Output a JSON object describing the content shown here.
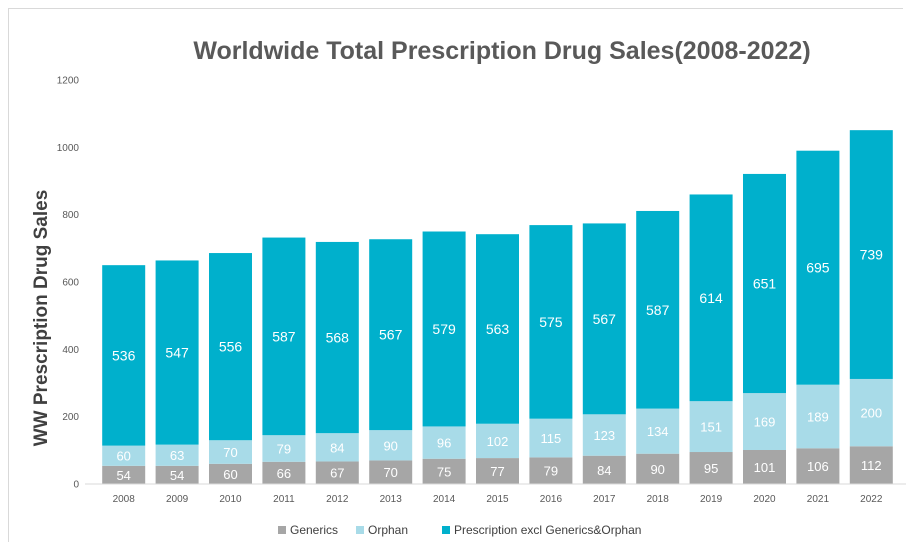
{
  "chart_data": {
    "type": "bar",
    "stacked": true,
    "title": "Worldwide Total Prescription Drug Sales(2008-2022)",
    "ylabel": "WW Prescription Drug Sales",
    "xlabel": "",
    "ylim": [
      0,
      1200
    ],
    "yticks": [
      0,
      200,
      400,
      600,
      800,
      1000,
      1200
    ],
    "categories": [
      "2008",
      "2009",
      "2010",
      "2011",
      "2012",
      "2013",
      "2014",
      "2015",
      "2016",
      "2017",
      "2018",
      "2019",
      "2020",
      "2021",
      "2022"
    ],
    "series": [
      {
        "name": "Generics",
        "color": "#a6a6a6",
        "values": [
          54,
          54,
          60,
          66,
          67,
          70,
          75,
          77,
          79,
          84,
          90,
          95,
          101,
          106,
          112
        ]
      },
      {
        "name": "Orphan",
        "color": "#a8dbe8",
        "values": [
          60,
          63,
          70,
          79,
          84,
          90,
          96,
          102,
          115,
          123,
          134,
          151,
          169,
          189,
          200
        ]
      },
      {
        "name": "Prescription excl Generics&Orphan",
        "color": "#00b0cc",
        "values": [
          536,
          547,
          556,
          587,
          568,
          567,
          579,
          563,
          575,
          567,
          587,
          614,
          651,
          695,
          739
        ]
      }
    ],
    "grid": false,
    "legend_position": "bottom"
  }
}
